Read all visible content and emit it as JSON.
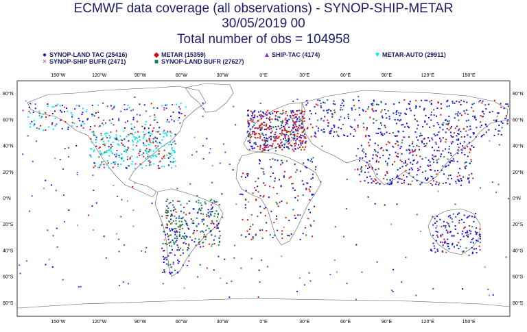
{
  "header": {
    "title_line1": "ECMWF data coverage (all observations) - SYNOP-SHIP-METAR",
    "title_line2": "30/05/2019 00",
    "title_line3": "Total number of obs = 104958"
  },
  "legend": {
    "items": [
      {
        "label": "SYNOP-LAND TAC (25416)",
        "symbol": "●",
        "color": "#1010e0",
        "symbol_name": "blue-circle-icon"
      },
      {
        "label": "METAR (15359)",
        "symbol": "◆",
        "color": "#e01010",
        "symbol_name": "red-diamond-icon"
      },
      {
        "label": "SHIP-TAC (4174)",
        "symbol": "▲",
        "color": "#8a2be2",
        "symbol_name": "purple-triangle-icon"
      },
      {
        "label": "METAR-AUTO (29911)",
        "symbol": "▼",
        "color": "#00e5ee",
        "symbol_name": "cyan-triangle-icon"
      },
      {
        "label": "SYNOP-SHIP BUFR (2471)",
        "symbol": "×",
        "color": "#d070b0",
        "symbol_name": "pink-cross-icon"
      },
      {
        "label": "SYNOP-LAND BUFR (27627)",
        "symbol": "■",
        "color": "#108040",
        "symbol_name": "green-square-icon"
      }
    ]
  },
  "axes": {
    "lon_labels": [
      "150°W",
      "120°W",
      "90°W",
      "60°W",
      "30°W",
      "0°E",
      "30°E",
      "60°E",
      "90°E",
      "120°E",
      "150°E"
    ],
    "lat_labels": [
      "80°N",
      "60°N",
      "40°N",
      "20°N",
      "0°N",
      "20°S",
      "40°S",
      "60°S",
      "80°S"
    ]
  }
}
